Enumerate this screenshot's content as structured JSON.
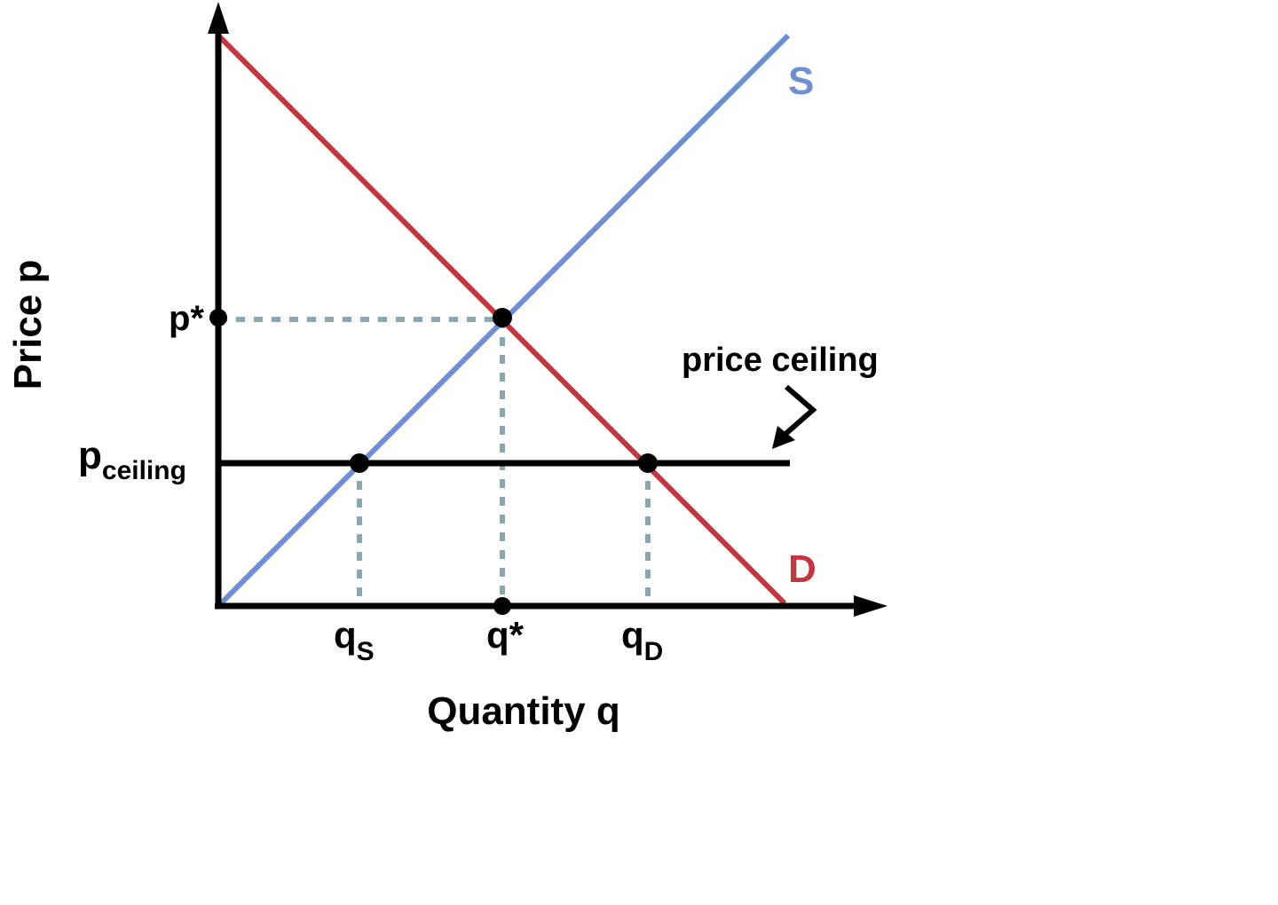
{
  "diagram": {
    "y_axis_label": "Price p",
    "x_axis_label": "Quantity q",
    "supply_label": "S",
    "demand_label": "D",
    "equilibrium_price_label": "p*",
    "ceiling_price_base": "p",
    "ceiling_price_sub": "ceiling",
    "equilibrium_quantity_label": "q*",
    "qs_base": "q",
    "qs_sub": "S",
    "qd_base": "q",
    "qd_sub": "D",
    "ceiling_annotation": "price ceiling"
  },
  "colors": {
    "supply": "#6f8fd1",
    "demand": "#c1363f",
    "axes": "#000000",
    "dotted_guides": "#8aa7b0",
    "ceiling_line": "#000000"
  }
}
